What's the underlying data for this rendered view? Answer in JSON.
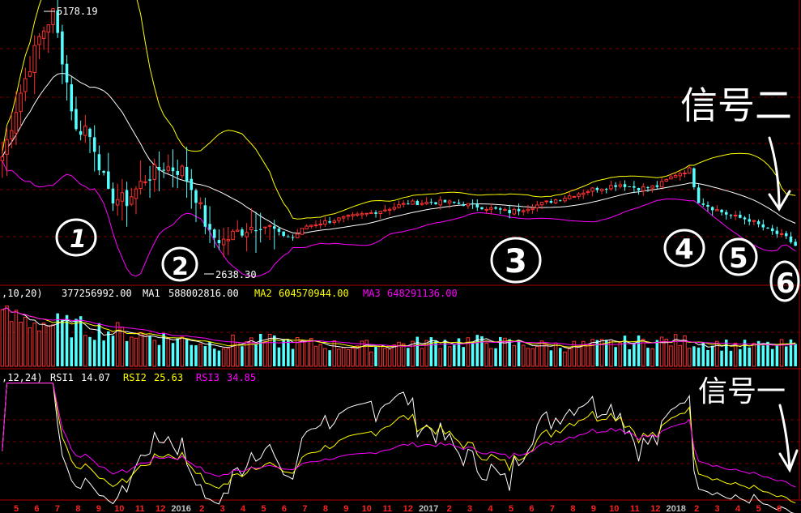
{
  "colors": {
    "background": "#000000",
    "grid": "#7a0000",
    "up": "#ff3030",
    "down": "#54ffff",
    "ma_white": "#ffffff",
    "ma_yellow": "#ffff00",
    "ma_magenta": "#ff00ff",
    "month_red": "#ff2020",
    "year_label": "#c0c0c0",
    "annotation": "#ffffff"
  },
  "price_panel": {
    "high_label": "5178.19",
    "low_label": "2638.30"
  },
  "volume_panel": {
    "header_params": ",10,20)",
    "header_value": "377256992.00",
    "ma1_label": "MA1",
    "ma1_value": "588002816.00",
    "ma2_label": "MA2",
    "ma2_value": "604570944.00",
    "ma3_label": "MA3",
    "ma3_value": "648291136.00"
  },
  "rsi_panel": {
    "header_params": ",12,24)",
    "rsi1_label": "RSI1",
    "rsi1_value": "14.07",
    "rsi2_label": "RSI2",
    "rsi2_value": "25.63",
    "rsi3_label": "RSI3",
    "rsi3_value": "34.85"
  },
  "annotations": {
    "signal_2": "信号二",
    "signal_1": "信号一",
    "markers": [
      "1",
      "2",
      "3",
      "4",
      "5",
      "6"
    ]
  },
  "time_axis": [
    {
      "label": "5",
      "kind": "month"
    },
    {
      "label": "6",
      "kind": "month"
    },
    {
      "label": "7",
      "kind": "month"
    },
    {
      "label": "8",
      "kind": "month"
    },
    {
      "label": "9",
      "kind": "month"
    },
    {
      "label": "10",
      "kind": "month"
    },
    {
      "label": "11",
      "kind": "month"
    },
    {
      "label": "12",
      "kind": "month"
    },
    {
      "label": "2016",
      "kind": "year"
    },
    {
      "label": "2",
      "kind": "month"
    },
    {
      "label": "3",
      "kind": "month"
    },
    {
      "label": "4",
      "kind": "month"
    },
    {
      "label": "5",
      "kind": "month"
    },
    {
      "label": "6",
      "kind": "month"
    },
    {
      "label": "7",
      "kind": "month"
    },
    {
      "label": "8",
      "kind": "month"
    },
    {
      "label": "9",
      "kind": "month"
    },
    {
      "label": "10",
      "kind": "month"
    },
    {
      "label": "11",
      "kind": "month"
    },
    {
      "label": "12",
      "kind": "month"
    },
    {
      "label": "2017",
      "kind": "year"
    },
    {
      "label": "2",
      "kind": "month"
    },
    {
      "label": "3",
      "kind": "month"
    },
    {
      "label": "4",
      "kind": "month"
    },
    {
      "label": "5",
      "kind": "month"
    },
    {
      "label": "6",
      "kind": "month"
    },
    {
      "label": "7",
      "kind": "month"
    },
    {
      "label": "8",
      "kind": "month"
    },
    {
      "label": "9",
      "kind": "month"
    },
    {
      "label": "10",
      "kind": "month"
    },
    {
      "label": "11",
      "kind": "month"
    },
    {
      "label": "12",
      "kind": "month"
    },
    {
      "label": "2018",
      "kind": "year"
    },
    {
      "label": "2",
      "kind": "month"
    },
    {
      "label": "3",
      "kind": "month"
    },
    {
      "label": "4",
      "kind": "month"
    },
    {
      "label": "5",
      "kind": "month"
    },
    {
      "label": "6",
      "kind": "month"
    }
  ],
  "chart_data": {
    "type": "candlestick",
    "period": "weekly",
    "ylim": [
      2400,
      5250
    ],
    "highest": 5178.19,
    "lowest": 2638.3,
    "price_path": [
      {
        "i": 0,
        "p": 3700
      },
      {
        "i": 4,
        "p": 4350
      },
      {
        "i": 8,
        "p": 4900
      },
      {
        "i": 11,
        "p": 5150
      },
      {
        "i": 13,
        "p": 4700
      },
      {
        "i": 16,
        "p": 3950
      },
      {
        "i": 18,
        "p": 4000
      },
      {
        "i": 20,
        "p": 3800
      },
      {
        "i": 23,
        "p": 3300
      },
      {
        "i": 27,
        "p": 3250
      },
      {
        "i": 31,
        "p": 3480
      },
      {
        "i": 35,
        "p": 3600
      },
      {
        "i": 39,
        "p": 3560
      },
      {
        "i": 42,
        "p": 3300
      },
      {
        "i": 45,
        "p": 2900
      },
      {
        "i": 48,
        "p": 2850
      },
      {
        "i": 52,
        "p": 2960
      },
      {
        "i": 56,
        "p": 3030
      },
      {
        "i": 60,
        "p": 2920
      },
      {
        "i": 63,
        "p": 2880
      },
      {
        "i": 66,
        "p": 3000
      },
      {
        "i": 72,
        "p": 3060
      },
      {
        "i": 80,
        "p": 3130
      },
      {
        "i": 88,
        "p": 3230
      },
      {
        "i": 96,
        "p": 3240
      },
      {
        "i": 100,
        "p": 3220
      },
      {
        "i": 104,
        "p": 3190
      },
      {
        "i": 110,
        "p": 3140
      },
      {
        "i": 116,
        "p": 3210
      },
      {
        "i": 122,
        "p": 3290
      },
      {
        "i": 128,
        "p": 3370
      },
      {
        "i": 134,
        "p": 3420
      },
      {
        "i": 138,
        "p": 3380
      },
      {
        "i": 142,
        "p": 3400
      },
      {
        "i": 146,
        "p": 3520
      },
      {
        "i": 149,
        "p": 3570
      },
      {
        "i": 151,
        "p": 3250
      },
      {
        "i": 154,
        "p": 3180
      },
      {
        "i": 158,
        "p": 3100
      },
      {
        "i": 162,
        "p": 3060
      },
      {
        "i": 166,
        "p": 2960
      },
      {
        "i": 170,
        "p": 2880
      },
      {
        "i": 172,
        "p": 2800
      }
    ],
    "volume_ylim": [
      0,
      1600000000
    ],
    "volume_latest": 377256992,
    "volume_ma": {
      "MA1": 588002816,
      "MA2": 604570944,
      "MA3": 648291136
    },
    "rsi_latest": {
      "RSI1": 14.07,
      "RSI2": 25.63,
      "RSI3": 34.85
    }
  }
}
